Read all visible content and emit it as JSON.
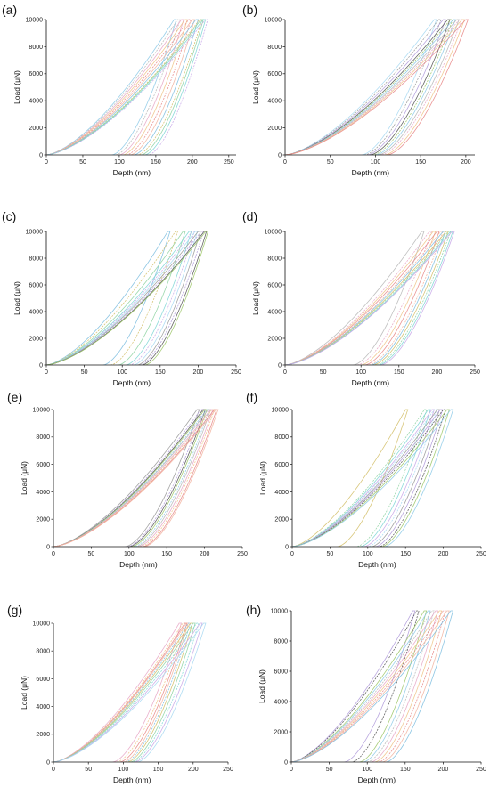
{
  "figure_labels": [
    "(a)",
    "(b)",
    "(c)",
    "(d)",
    "(e)",
    "(f)",
    "(g)",
    "(h)"
  ],
  "colors": [
    "#8fcbe8",
    "#a9d9f2",
    "#7fbfe0",
    "#b8b8b8",
    "#9a9a9a",
    "#d4c06a",
    "#e8a7c6",
    "#b39ddb",
    "#90d4a3",
    "#f0c48a",
    "#555555",
    "#7fd6d6",
    "#e88a8a",
    "#9fc86a",
    "#c9a9e8",
    "#f2b5a1"
  ],
  "chart_data": [
    {
      "panel": "(a)",
      "type": "line",
      "xlabel": "Depth (nm)",
      "ylabel": "Load (μN)",
      "xlim": [
        0,
        260
      ],
      "ylim": [
        0,
        10000
      ],
      "xticks": [
        "0",
        "50",
        "100",
        "150",
        "200",
        "250"
      ],
      "yticks": [
        "0",
        "2000",
        "4000",
        "6000",
        "8000",
        "10000"
      ],
      "curves_description": "nanoindentation load-unload curves",
      "loading_max_depth": [
        175,
        180,
        185,
        190,
        195,
        200,
        205,
        210,
        212,
        215,
        218
      ],
      "unloading_start_depth": [
        90,
        95,
        100,
        105,
        110,
        115,
        120,
        125,
        130,
        135,
        140
      ],
      "peak_load": 10000
    },
    {
      "panel": "(b)",
      "type": "line",
      "xlabel": "Depth (nm)",
      "ylabel": "Load (μN)",
      "xlim": [
        0,
        210
      ],
      "ylim": [
        0,
        10000
      ],
      "xticks": [
        "0",
        "50",
        "100",
        "150",
        "200"
      ],
      "yticks": [
        "0",
        "2000",
        "4000",
        "6000",
        "8000",
        "10000"
      ],
      "loading_max_depth": [
        165,
        170,
        175,
        180,
        183,
        186,
        190,
        193,
        196,
        200
      ],
      "unloading_start_depth": [
        85,
        88,
        91,
        94,
        97,
        100,
        103,
        106,
        110,
        113
      ],
      "peak_load": 10000
    },
    {
      "panel": "(c)",
      "type": "line",
      "xlabel": "Depth (nm)",
      "ylabel": "Load (μN)",
      "xlim": [
        0,
        250
      ],
      "ylim": [
        0,
        10000
      ],
      "xticks": [
        "0",
        "50",
        "100",
        "150",
        "200",
        "250"
      ],
      "yticks": [
        "0",
        "2000",
        "4000",
        "6000",
        "8000",
        "10000"
      ],
      "loading_max_depth": [
        160,
        170,
        180,
        188,
        192,
        196,
        200,
        204,
        208,
        210
      ],
      "unloading_start_depth": [
        75,
        85,
        95,
        105,
        110,
        115,
        120,
        123,
        126,
        130
      ],
      "peak_load": 10000
    },
    {
      "panel": "(d)",
      "type": "line",
      "xlabel": "Depth (nm)",
      "ylabel": "Load (μN)",
      "xlim": [
        0,
        250
      ],
      "ylim": [
        0,
        10000
      ],
      "xticks": [
        "0",
        "50",
        "100",
        "150",
        "200",
        "250"
      ],
      "yticks": [
        "0",
        "2000",
        "4000",
        "6000",
        "8000",
        "10000"
      ],
      "loading_max_depth": [
        180,
        190,
        195,
        200,
        205,
        208,
        212,
        215,
        218,
        220
      ],
      "unloading_start_depth": [
        90,
        95,
        100,
        105,
        110,
        113,
        116,
        120,
        123,
        126
      ],
      "peak_load": 10000
    },
    {
      "panel": "(e)",
      "type": "line",
      "xlabel": "Depth (nm)",
      "ylabel": "Load (μN)",
      "xlim": [
        0,
        250
      ],
      "ylim": [
        0,
        10000
      ],
      "xticks": [
        "0",
        "50",
        "100",
        "150",
        "200",
        "250"
      ],
      "yticks": [
        "0",
        "2000",
        "4000",
        "6000",
        "8000",
        "10000"
      ],
      "loading_max_depth": [
        190,
        195,
        198,
        200,
        203,
        205,
        208,
        210,
        213,
        215
      ],
      "unloading_start_depth": [
        95,
        98,
        100,
        103,
        106,
        109,
        112,
        115,
        118,
        120
      ],
      "peak_load": 10000
    },
    {
      "panel": "(f)",
      "type": "line",
      "xlabel": "Depth (nm)",
      "ylabel": "Load (μN)",
      "xlim": [
        0,
        250
      ],
      "ylim": [
        0,
        10000
      ],
      "xticks": [
        "0",
        "50",
        "100",
        "150",
        "200",
        "250"
      ],
      "yticks": [
        "0",
        "2000",
        "4000",
        "6000",
        "8000",
        "10000"
      ],
      "loading_max_depth": [
        150,
        175,
        180,
        185,
        188,
        192,
        196,
        200,
        205,
        210
      ],
      "unloading_start_depth": [
        60,
        85,
        90,
        95,
        100,
        105,
        110,
        115,
        118,
        122
      ],
      "peak_load": 10000
    },
    {
      "panel": "(g)",
      "type": "line",
      "xlabel": "Depth (nm)",
      "ylabel": "Load (μN)",
      "xlim": [
        0,
        250
      ],
      "ylim": [
        0,
        10000
      ],
      "xticks": [
        "0",
        "50",
        "100",
        "150",
        "200",
        "250"
      ],
      "yticks": [
        "0",
        "2000",
        "4000",
        "6000",
        "8000",
        "10000"
      ],
      "loading_max_depth": [
        180,
        185,
        188,
        190,
        193,
        196,
        200,
        205,
        210,
        215
      ],
      "unloading_start_depth": [
        85,
        90,
        95,
        100,
        103,
        106,
        110,
        113,
        116,
        120
      ],
      "peak_load": 10000
    },
    {
      "panel": "(h)",
      "type": "line",
      "xlabel": "Depth (nm)",
      "ylabel": "Load (μN)",
      "xlim": [
        0,
        250
      ],
      "ylim": [
        0,
        10000
      ],
      "xticks": [
        "0",
        "50",
        "100",
        "150",
        "200",
        "250"
      ],
      "yticks": [
        "0",
        "2000",
        "4000",
        "6000",
        "8000",
        "10000"
      ],
      "loading_max_depth": [
        160,
        165,
        175,
        180,
        185,
        190,
        195,
        200,
        205,
        210
      ],
      "unloading_start_depth": [
        70,
        80,
        90,
        95,
        100,
        105,
        110,
        115,
        120,
        125
      ],
      "peak_load": 10000
    }
  ]
}
